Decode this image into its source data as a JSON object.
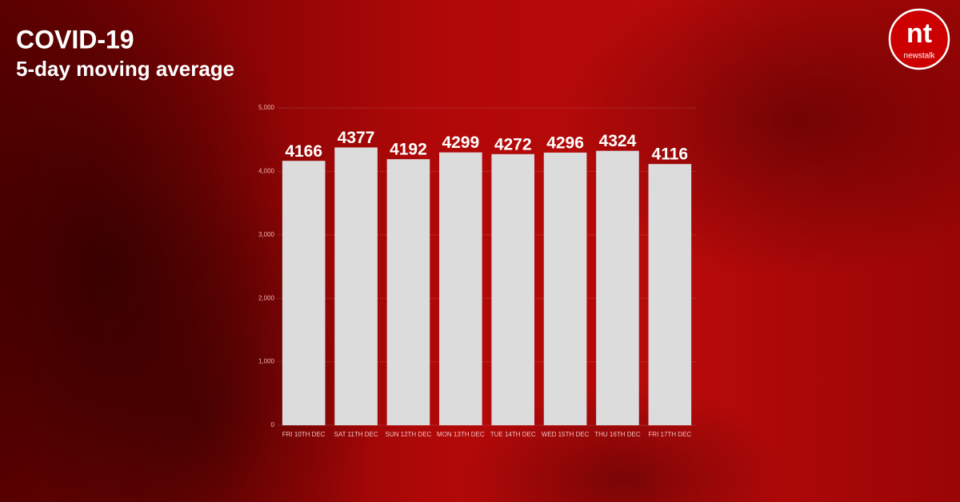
{
  "chart_data": {
    "type": "bar",
    "title": "COVID-19",
    "subtitle": "5-day moving average",
    "categories": [
      "FRI 10TH DEC",
      "SAT 11TH DEC",
      "SUN 12TH DEC",
      "MON 13TH DEC",
      "TUE 14TH DEC",
      "WED 15TH DEC",
      "THU 16TH DEC",
      "FRI 17TH DEC"
    ],
    "values": [
      4166,
      4377,
      4192,
      4299,
      4272,
      4296,
      4324,
      4116
    ],
    "color": "#dcdcdc",
    "ylim": [
      0,
      5000
    ],
    "yticks": [
      0,
      {
        "value": 1000,
        "label": "1,000"
      },
      {
        "value": 2000,
        "label": "2,000"
      },
      {
        "value": 3000,
        "label": "3,000"
      },
      {
        "value": 4000,
        "label": "4,000"
      },
      {
        "value": 5000,
        "label": "5,000"
      }
    ],
    "grid": true
  },
  "logo": {
    "mark": "nt",
    "name": "newstalk"
  }
}
